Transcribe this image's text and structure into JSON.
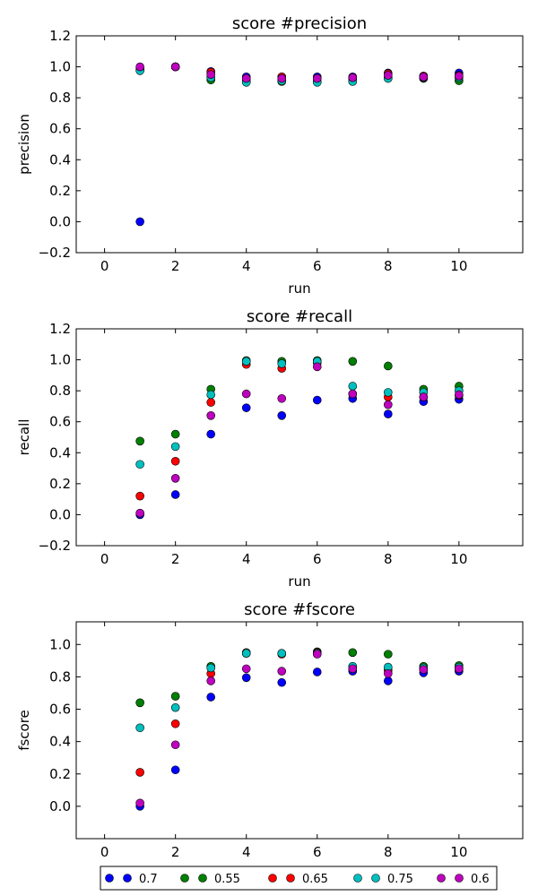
{
  "chart_data": [
    {
      "type": "scatter",
      "title": "score #precision",
      "xlabel": "run",
      "ylabel": "precision",
      "xlim": [
        -0.8,
        11.8
      ],
      "ylim": [
        -0.2,
        1.2
      ],
      "xticks": [
        0,
        2,
        4,
        6,
        8,
        10
      ],
      "xtick_labels": [
        "0",
        "2",
        "4",
        "6",
        "8",
        "10"
      ],
      "yticks": [
        -0.2,
        0.0,
        0.2,
        0.4,
        0.6,
        0.8,
        1.0,
        1.2
      ],
      "ytick_labels": [
        "−0.2",
        "0.0",
        "0.2",
        "0.4",
        "0.6",
        "0.8",
        "1.0",
        "1.2"
      ],
      "x": [
        1,
        2,
        3,
        4,
        5,
        6,
        7,
        8,
        9,
        10
      ],
      "series": [
        {
          "name": "0.7",
          "color": "#0000ff",
          "values": [
            0.0,
            1.0,
            0.97,
            0.935,
            0.935,
            0.935,
            0.935,
            0.96,
            0.94,
            0.96
          ]
        },
        {
          "name": "0.55",
          "color": "#008000",
          "values": [
            0.98,
            1.0,
            0.915,
            0.905,
            0.905,
            0.905,
            0.92,
            0.93,
            0.925,
            0.91
          ]
        },
        {
          "name": "0.65",
          "color": "#ff0000",
          "values": [
            0.99,
            1.0,
            0.965,
            0.92,
            0.935,
            0.925,
            0.925,
            0.955,
            0.94,
            0.945
          ]
        },
        {
          "name": "0.75",
          "color": "#00bfbf",
          "values": [
            0.975,
            1.0,
            0.93,
            0.9,
            0.91,
            0.9,
            0.905,
            0.925,
            0.93,
            0.93
          ]
        },
        {
          "name": "0.6",
          "color": "#bf00bf",
          "values": [
            1.0,
            1.0,
            0.95,
            0.925,
            0.925,
            0.925,
            0.93,
            0.945,
            0.935,
            0.94
          ]
        }
      ]
    },
    {
      "type": "scatter",
      "title": "score #recall",
      "xlabel": "run",
      "ylabel": "recall",
      "xlim": [
        -0.8,
        11.8
      ],
      "ylim": [
        -0.2,
        1.2
      ],
      "xticks": [
        0,
        2,
        4,
        6,
        8,
        10
      ],
      "xtick_labels": [
        "0",
        "2",
        "4",
        "6",
        "8",
        "10"
      ],
      "yticks": [
        -0.2,
        0.0,
        0.2,
        0.4,
        0.6,
        0.8,
        1.0,
        1.2
      ],
      "ytick_labels": [
        "−0.2",
        "0.0",
        "0.2",
        "0.4",
        "0.6",
        "0.8",
        "1.0",
        "1.2"
      ],
      "x": [
        1,
        2,
        3,
        4,
        5,
        6,
        7,
        8,
        9,
        10
      ],
      "series": [
        {
          "name": "0.7",
          "color": "#0000ff",
          "values": [
            0.0,
            0.13,
            0.52,
            0.69,
            0.64,
            0.74,
            0.75,
            0.65,
            0.73,
            0.745
          ]
        },
        {
          "name": "0.55",
          "color": "#008000",
          "values": [
            0.475,
            0.52,
            0.81,
            0.995,
            0.99,
            0.995,
            0.99,
            0.96,
            0.81,
            0.83
          ]
        },
        {
          "name": "0.65",
          "color": "#ff0000",
          "values": [
            0.12,
            0.345,
            0.725,
            0.97,
            0.945,
            0.98,
            0.78,
            0.76,
            0.76,
            0.77
          ]
        },
        {
          "name": "0.75",
          "color": "#00bfbf",
          "values": [
            0.325,
            0.44,
            0.775,
            0.99,
            0.975,
            0.99,
            0.83,
            0.79,
            0.79,
            0.8
          ]
        },
        {
          "name": "0.6",
          "color": "#bf00bf",
          "values": [
            0.01,
            0.235,
            0.64,
            0.78,
            0.75,
            0.955,
            0.78,
            0.71,
            0.76,
            0.775
          ]
        }
      ]
    },
    {
      "type": "scatter",
      "title": "score #fscore",
      "xlabel": "",
      "ylabel": "fscore",
      "xlim": [
        -0.8,
        11.8
      ],
      "ylim": [
        -0.2,
        1.14
      ],
      "xticks": [
        0,
        2,
        4,
        6,
        8,
        10
      ],
      "xtick_labels": [
        "0",
        "2",
        "4",
        "6",
        "8",
        "10"
      ],
      "yticks": [
        0.0,
        0.2,
        0.4,
        0.6,
        0.8,
        1.0
      ],
      "ytick_labels": [
        "0.0",
        "0.2",
        "0.4",
        "0.6",
        "0.8",
        "1.0"
      ],
      "x": [
        1,
        2,
        3,
        4,
        5,
        6,
        7,
        8,
        9,
        10
      ],
      "series": [
        {
          "name": "0.7",
          "color": "#0000ff",
          "values": [
            0.0,
            0.225,
            0.675,
            0.795,
            0.765,
            0.83,
            0.835,
            0.775,
            0.825,
            0.835
          ]
        },
        {
          "name": "0.55",
          "color": "#008000",
          "values": [
            0.64,
            0.68,
            0.865,
            0.95,
            0.945,
            0.955,
            0.95,
            0.94,
            0.865,
            0.87
          ]
        },
        {
          "name": "0.65",
          "color": "#ff0000",
          "values": [
            0.21,
            0.51,
            0.82,
            0.945,
            0.94,
            0.95,
            0.85,
            0.84,
            0.845,
            0.85
          ]
        },
        {
          "name": "0.75",
          "color": "#00bfbf",
          "values": [
            0.485,
            0.61,
            0.855,
            0.945,
            0.945,
            0.945,
            0.865,
            0.86,
            0.855,
            0.86
          ]
        },
        {
          "name": "0.6",
          "color": "#bf00bf",
          "values": [
            0.02,
            0.38,
            0.775,
            0.85,
            0.835,
            0.94,
            0.85,
            0.82,
            0.845,
            0.85
          ]
        }
      ]
    }
  ],
  "legend": {
    "location": "bottom-center",
    "entries": [
      {
        "label": "0.7",
        "color": "#0000ff"
      },
      {
        "label": "0.55",
        "color": "#008000"
      },
      {
        "label": "0.65",
        "color": "#ff0000"
      },
      {
        "label": "0.75",
        "color": "#00bfbf"
      },
      {
        "label": "0.6",
        "color": "#bf00bf"
      }
    ]
  }
}
